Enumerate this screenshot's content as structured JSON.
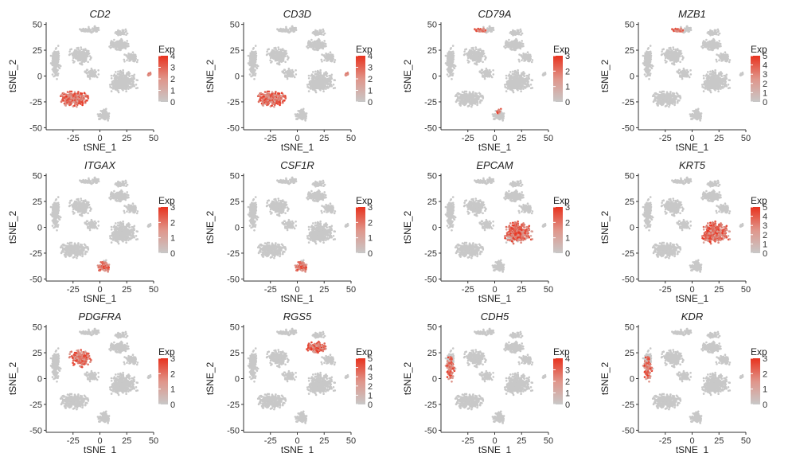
{
  "colors": {
    "background_cells": "#c8c8c8",
    "low": "#d9a79f",
    "high": "#e8321e",
    "axis": "#333333"
  },
  "chart_data": [
    {
      "type": "scatter",
      "title": "CD2",
      "xlabel": "tSNE_1",
      "ylabel": "tSNE_2",
      "x_ticks": [
        -25,
        0,
        25,
        50
      ],
      "y_ticks": [
        -50,
        -25,
        0,
        25,
        50
      ],
      "xlim": [
        -50,
        50
      ],
      "ylim": [
        -52,
        52
      ],
      "legend_title": "Exp",
      "legend_ticks": [
        0,
        1,
        2,
        3,
        4
      ],
      "expr_max": 4,
      "grid": false,
      "legend_position": "right",
      "expressing_clusters": [
        "t_cells",
        "small_right"
      ]
    },
    {
      "type": "scatter",
      "title": "CD3D",
      "xlabel": "tSNE_1",
      "ylabel": "tSNE_2",
      "x_ticks": [
        -25,
        0,
        25,
        50
      ],
      "y_ticks": [
        -50,
        -25,
        0,
        25,
        50
      ],
      "xlim": [
        -50,
        50
      ],
      "ylim": [
        -52,
        52
      ],
      "legend_title": "Exp",
      "legend_ticks": [
        0,
        1,
        2,
        3,
        4
      ],
      "expr_max": 4,
      "grid": false,
      "legend_position": "right",
      "expressing_clusters": [
        "t_cells",
        "small_right"
      ]
    },
    {
      "type": "scatter",
      "title": "CD79A",
      "xlabel": "tSNE_1",
      "ylabel": "tSNE_2",
      "x_ticks": [
        -25,
        0,
        25,
        50
      ],
      "y_ticks": [
        -50,
        -25,
        0,
        25,
        50
      ],
      "xlim": [
        -50,
        50
      ],
      "ylim": [
        -52,
        52
      ],
      "legend_title": "Exp",
      "legend_ticks": [
        0,
        1,
        2,
        3
      ],
      "expr_max": 3,
      "grid": false,
      "legend_position": "right",
      "expressing_clusters": [
        "b_cells",
        "bottom_tip"
      ]
    },
    {
      "type": "scatter",
      "title": "MZB1",
      "xlabel": "tSNE_1",
      "ylabel": "tSNE_2",
      "x_ticks": [
        -25,
        0,
        25,
        50
      ],
      "y_ticks": [
        -50,
        -25,
        0,
        25,
        50
      ],
      "xlim": [
        -50,
        50
      ],
      "ylim": [
        -52,
        52
      ],
      "legend_title": "Exp",
      "legend_ticks": [
        0,
        1,
        2,
        3,
        4,
        5
      ],
      "expr_max": 5,
      "grid": false,
      "legend_position": "right",
      "expressing_clusters": [
        "b_cells"
      ]
    },
    {
      "type": "scatter",
      "title": "ITGAX",
      "xlabel": "tSNE_1",
      "ylabel": "tSNE_2",
      "x_ticks": [
        -25,
        0,
        25,
        50
      ],
      "y_ticks": [
        -50,
        -25,
        0,
        25,
        50
      ],
      "xlim": [
        -50,
        50
      ],
      "ylim": [
        -52,
        52
      ],
      "legend_title": "Exp",
      "legend_ticks": [
        0,
        1,
        2,
        3
      ],
      "expr_max": 3,
      "grid": false,
      "legend_position": "right",
      "expressing_clusters": [
        "myeloid"
      ]
    },
    {
      "type": "scatter",
      "title": "CSF1R",
      "xlabel": "tSNE_1",
      "ylabel": "tSNE_2",
      "x_ticks": [
        -25,
        0,
        25,
        50
      ],
      "y_ticks": [
        -50,
        -25,
        0,
        25,
        50
      ],
      "xlim": [
        -50,
        50
      ],
      "ylim": [
        -52,
        52
      ],
      "legend_title": "Exp",
      "legend_ticks": [
        0,
        1,
        2,
        3
      ],
      "expr_max": 3,
      "grid": false,
      "legend_position": "right",
      "expressing_clusters": [
        "myeloid"
      ]
    },
    {
      "type": "scatter",
      "title": "EPCAM",
      "xlabel": "tSNE_1",
      "ylabel": "tSNE_2",
      "x_ticks": [
        -25,
        0,
        25,
        50
      ],
      "y_ticks": [
        -50,
        -25,
        0,
        25,
        50
      ],
      "xlim": [
        -50,
        50
      ],
      "ylim": [
        -52,
        52
      ],
      "legend_title": "Exp",
      "legend_ticks": [
        0,
        1,
        2,
        3
      ],
      "expr_max": 3,
      "grid": false,
      "legend_position": "right",
      "expressing_clusters": [
        "epithelial"
      ]
    },
    {
      "type": "scatter",
      "title": "KRT5",
      "xlabel": "tSNE_1",
      "ylabel": "tSNE_2",
      "x_ticks": [
        -25,
        0,
        25,
        50
      ],
      "y_ticks": [
        -50,
        -25,
        0,
        25,
        50
      ],
      "xlim": [
        -50,
        50
      ],
      "ylim": [
        -52,
        52
      ],
      "legend_title": "Exp",
      "legend_ticks": [
        0,
        1,
        2,
        3,
        4,
        5
      ],
      "expr_max": 5,
      "grid": false,
      "legend_position": "right",
      "expressing_clusters": [
        "epithelial",
        "epithelial_core"
      ]
    },
    {
      "type": "scatter",
      "title": "PDGFRA",
      "xlabel": "tSNE_1",
      "ylabel": "tSNE_2",
      "x_ticks": [
        -25,
        0,
        25,
        50
      ],
      "y_ticks": [
        -50,
        -25,
        0,
        25,
        50
      ],
      "xlim": [
        -50,
        50
      ],
      "ylim": [
        -52,
        52
      ],
      "legend_title": "Exp",
      "legend_ticks": [
        0,
        1,
        2,
        3
      ],
      "expr_max": 3,
      "grid": false,
      "legend_position": "right",
      "expressing_clusters": [
        "fibroblasts"
      ]
    },
    {
      "type": "scatter",
      "title": "RGS5",
      "xlabel": "tSNE_1",
      "ylabel": "tSNE_2",
      "x_ticks": [
        -25,
        0,
        25,
        50
      ],
      "y_ticks": [
        -50,
        -25,
        0,
        25,
        50
      ],
      "xlim": [
        -50,
        50
      ],
      "ylim": [
        -52,
        52
      ],
      "legend_title": "Exp",
      "legend_ticks": [
        0,
        1,
        2,
        3,
        4,
        5
      ],
      "expr_max": 5,
      "grid": false,
      "legend_position": "right",
      "expressing_clusters": [
        "pericytes"
      ]
    },
    {
      "type": "scatter",
      "title": "CDH5",
      "xlabel": "tSNE_1",
      "ylabel": "tSNE_2",
      "x_ticks": [
        -25,
        0,
        25,
        50
      ],
      "y_ticks": [
        -50,
        -25,
        0,
        25,
        50
      ],
      "xlim": [
        -50,
        50
      ],
      "ylim": [
        -52,
        52
      ],
      "legend_title": "Exp",
      "legend_ticks": [
        0,
        1,
        2,
        3,
        4
      ],
      "expr_max": 4,
      "grid": false,
      "legend_position": "right",
      "expressing_clusters": [
        "endothelial"
      ]
    },
    {
      "type": "scatter",
      "title": "KDR",
      "xlabel": "tSNE_1",
      "ylabel": "tSNE_2",
      "x_ticks": [
        -25,
        0,
        25,
        50
      ],
      "y_ticks": [
        -50,
        -25,
        0,
        25,
        50
      ],
      "xlim": [
        -50,
        50
      ],
      "ylim": [
        -52,
        52
      ],
      "legend_title": "Exp",
      "legend_ticks": [
        0,
        1,
        2,
        3
      ],
      "expr_max": 3,
      "grid": false,
      "legend_position": "right",
      "expressing_clusters": [
        "endothelial"
      ]
    }
  ]
}
